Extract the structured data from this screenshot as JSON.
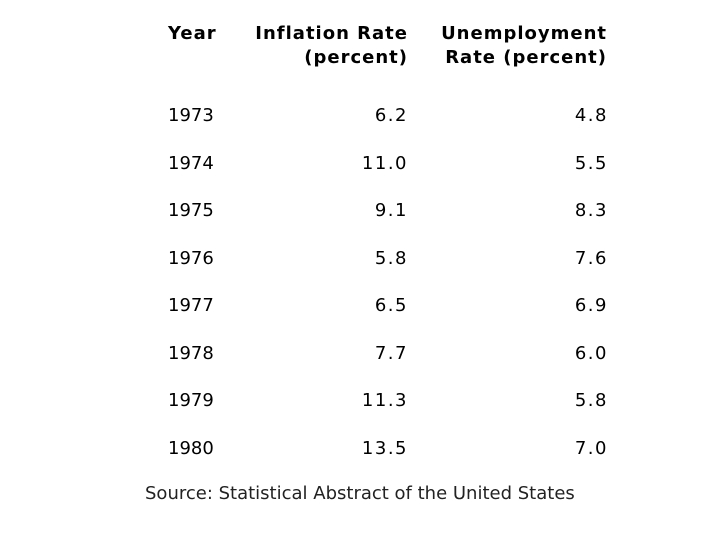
{
  "chart_data": {
    "type": "table",
    "title": "",
    "columns": [
      "Year",
      "Inflation Rate (percent)",
      "Unemployment Rate (percent)"
    ],
    "header": {
      "year": "Year",
      "inflation_line1": "Inflation Rate",
      "inflation_line2": "(percent)",
      "unemployment_line1": "Unemployment",
      "unemployment_line2": "Rate (percent)"
    },
    "rows": [
      {
        "year": "1973",
        "inflation": "6.2",
        "unemployment": "4.8"
      },
      {
        "year": "1974",
        "inflation": "11.0",
        "unemployment": "5.5"
      },
      {
        "year": "1975",
        "inflation": "9.1",
        "unemployment": "8.3"
      },
      {
        "year": "1976",
        "inflation": "5.8",
        "unemployment": "7.6"
      },
      {
        "year": "1977",
        "inflation": "6.5",
        "unemployment": "6.9"
      },
      {
        "year": "1978",
        "inflation": "7.7",
        "unemployment": "6.0"
      },
      {
        "year": "1979",
        "inflation": "11.3",
        "unemployment": "5.8"
      },
      {
        "year": "1980",
        "inflation": "13.5",
        "unemployment": "7.0"
      }
    ],
    "source": "Source: Statistical Abstract of the United States"
  }
}
